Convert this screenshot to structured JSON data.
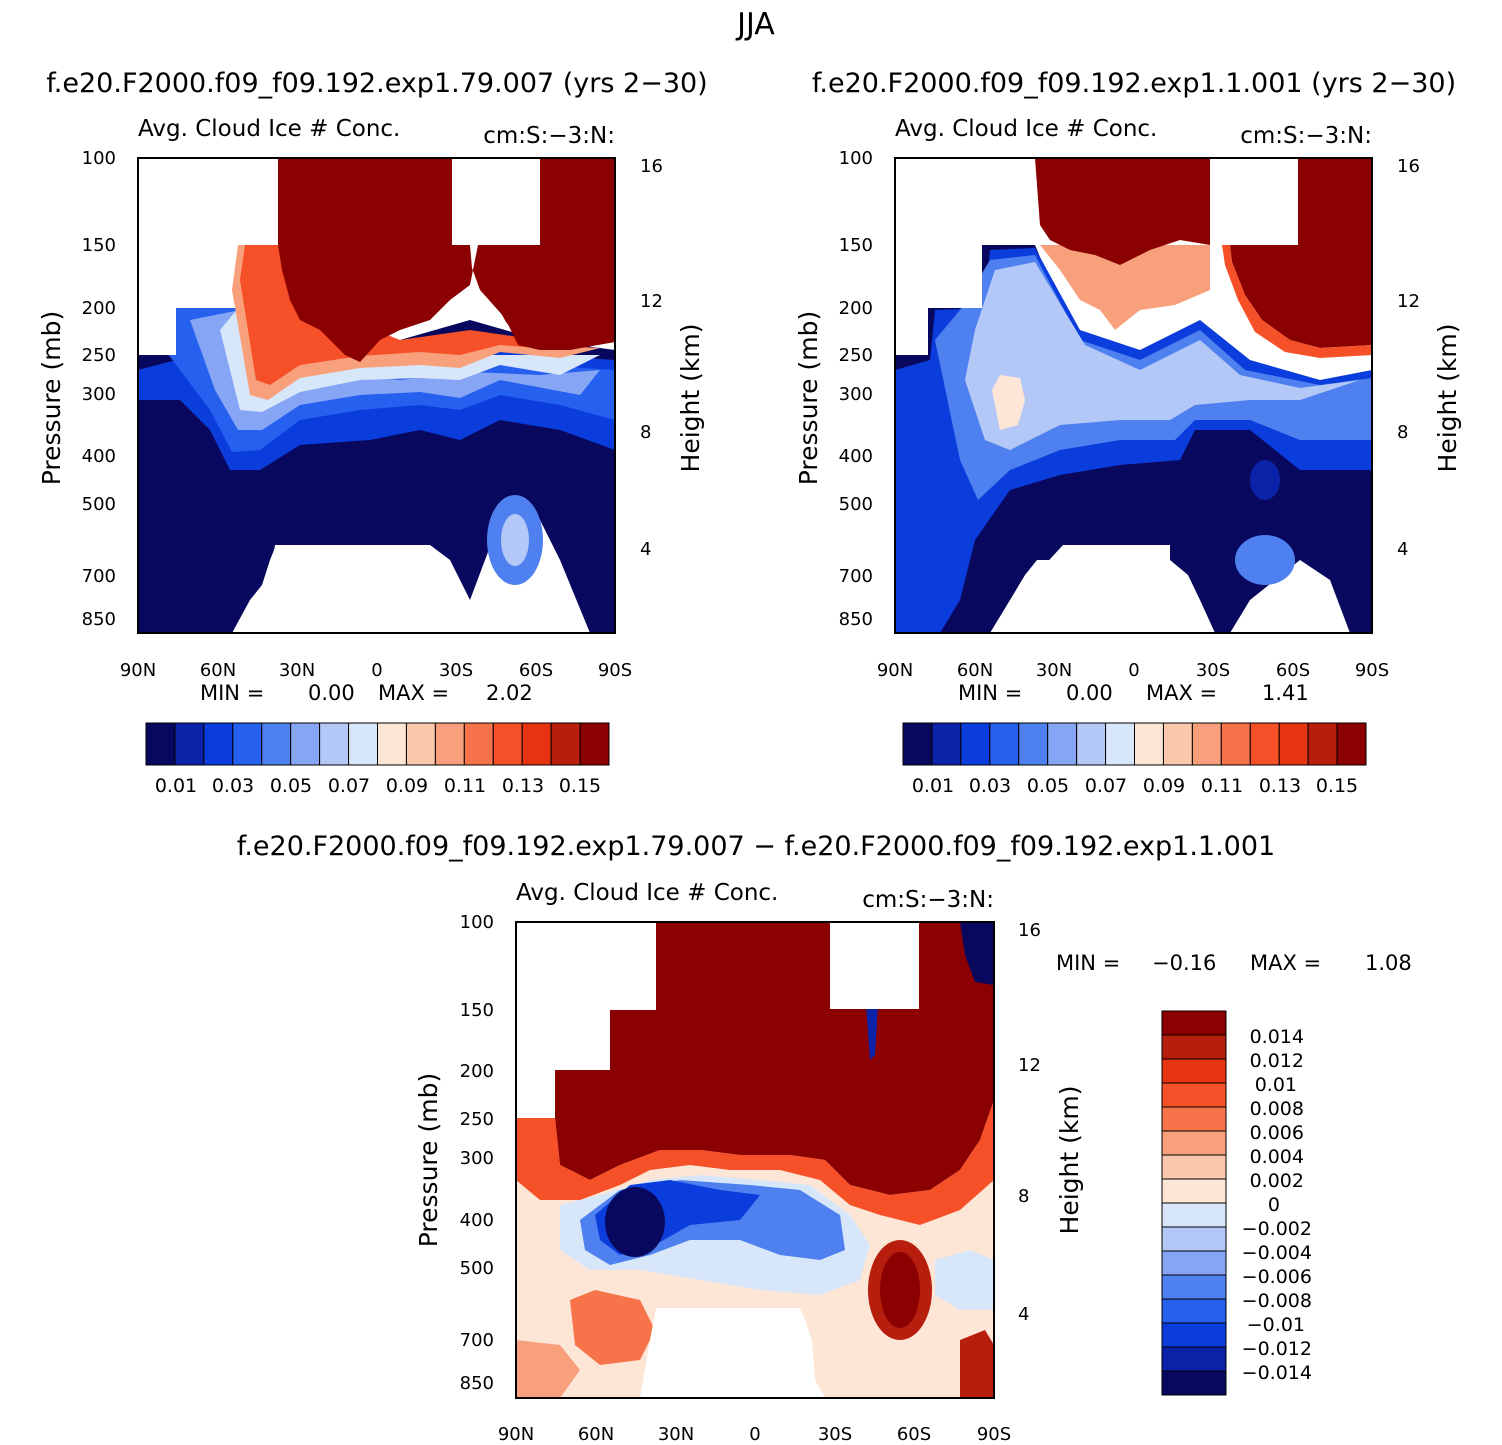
{
  "figure_title": "JJA",
  "colors": {
    "blues": [
      "#08085f",
      "#0a22a8",
      "#0a3ddb",
      "#2660ee",
      "#4f80f0",
      "#86a6f5",
      "#b4c8f8",
      "#d8e6fa"
    ],
    "reds": [
      "#fde6d6",
      "#fbc7ad",
      "#f8a07c",
      "#f7744b",
      "#f55027",
      "#e63412",
      "#b81e0d",
      "#8b0000"
    ]
  },
  "chart_data": [
    {
      "panel": "top-left",
      "type": "heatmap",
      "header": "f.e20.F2000.f09_f09.192.exp1.79.007 (yrs 2−30)",
      "title_left": "Avg. Cloud Ice # Conc.",
      "title_right": "cm:S:−3:N:",
      "ylabel": "Pressure (mb)",
      "ylabel_right": "Height (km)",
      "x_ticks": [
        "90N",
        "60N",
        "30N",
        "0",
        "30S",
        "60S",
        "90S"
      ],
      "y_ticks": [
        "100",
        "150",
        "200",
        "250",
        "300",
        "400",
        "500",
        "700",
        "850"
      ],
      "y_ticks_right": [
        "16",
        "12",
        "8",
        "4"
      ],
      "xlim": [
        90,
        -90
      ],
      "ylim_mb": [
        100,
        850
      ],
      "min_label": "MIN =",
      "min_value": "0.00",
      "max_label": "MAX =",
      "max_value": "2.02",
      "colorbar_labels": [
        "0.01",
        "0.03",
        "0.05",
        "0.07",
        "0.09",
        "0.11",
        "0.13",
        "0.15"
      ]
    },
    {
      "panel": "top-right",
      "type": "heatmap",
      "header": "f.e20.F2000.f09_f09.192.exp1.1.001 (yrs 2−30)",
      "title_left": "Avg. Cloud Ice # Conc.",
      "title_right": "cm:S:−3:N:",
      "ylabel": "Pressure (mb)",
      "ylabel_right": "Height (km)",
      "x_ticks": [
        "90N",
        "60N",
        "30N",
        "0",
        "30S",
        "60S",
        "90S"
      ],
      "y_ticks": [
        "100",
        "150",
        "200",
        "250",
        "300",
        "400",
        "500",
        "700",
        "850"
      ],
      "y_ticks_right": [
        "16",
        "12",
        "8",
        "4"
      ],
      "xlim": [
        90,
        -90
      ],
      "ylim_mb": [
        100,
        850
      ],
      "min_label": "MIN =",
      "min_value": "0.00",
      "max_label": "MAX =",
      "max_value": "1.41",
      "colorbar_labels": [
        "0.01",
        "0.03",
        "0.05",
        "0.07",
        "0.09",
        "0.11",
        "0.13",
        "0.15"
      ]
    },
    {
      "panel": "bottom",
      "type": "heatmap",
      "header": "f.e20.F2000.f09_f09.192.exp1.79.007 − f.e20.F2000.f09_f09.192.exp1.1.001",
      "title_left": "Avg. Cloud Ice # Conc.",
      "title_right": "cm:S:−3:N:",
      "ylabel": "Pressure (mb)",
      "ylabel_right": "Height (km)",
      "x_ticks": [
        "90N",
        "60N",
        "30N",
        "0",
        "30S",
        "60S",
        "90S"
      ],
      "y_ticks": [
        "100",
        "150",
        "200",
        "250",
        "300",
        "400",
        "500",
        "700",
        "850"
      ],
      "y_ticks_right": [
        "16",
        "12",
        "8",
        "4"
      ],
      "xlim": [
        90,
        -90
      ],
      "ylim_mb": [
        100,
        850
      ],
      "min_label": "MIN =",
      "min_value": "−0.16",
      "max_label": "MAX =",
      "max_value": "1.08",
      "colorbar_labels": [
        "0.014",
        "0.012",
        "0.01",
        "0.008",
        "0.006",
        "0.004",
        "0.002",
        "0",
        "−0.002",
        "−0.004",
        "−0.006",
        "−0.008",
        "−0.01",
        "−0.012",
        "−0.014"
      ]
    }
  ]
}
